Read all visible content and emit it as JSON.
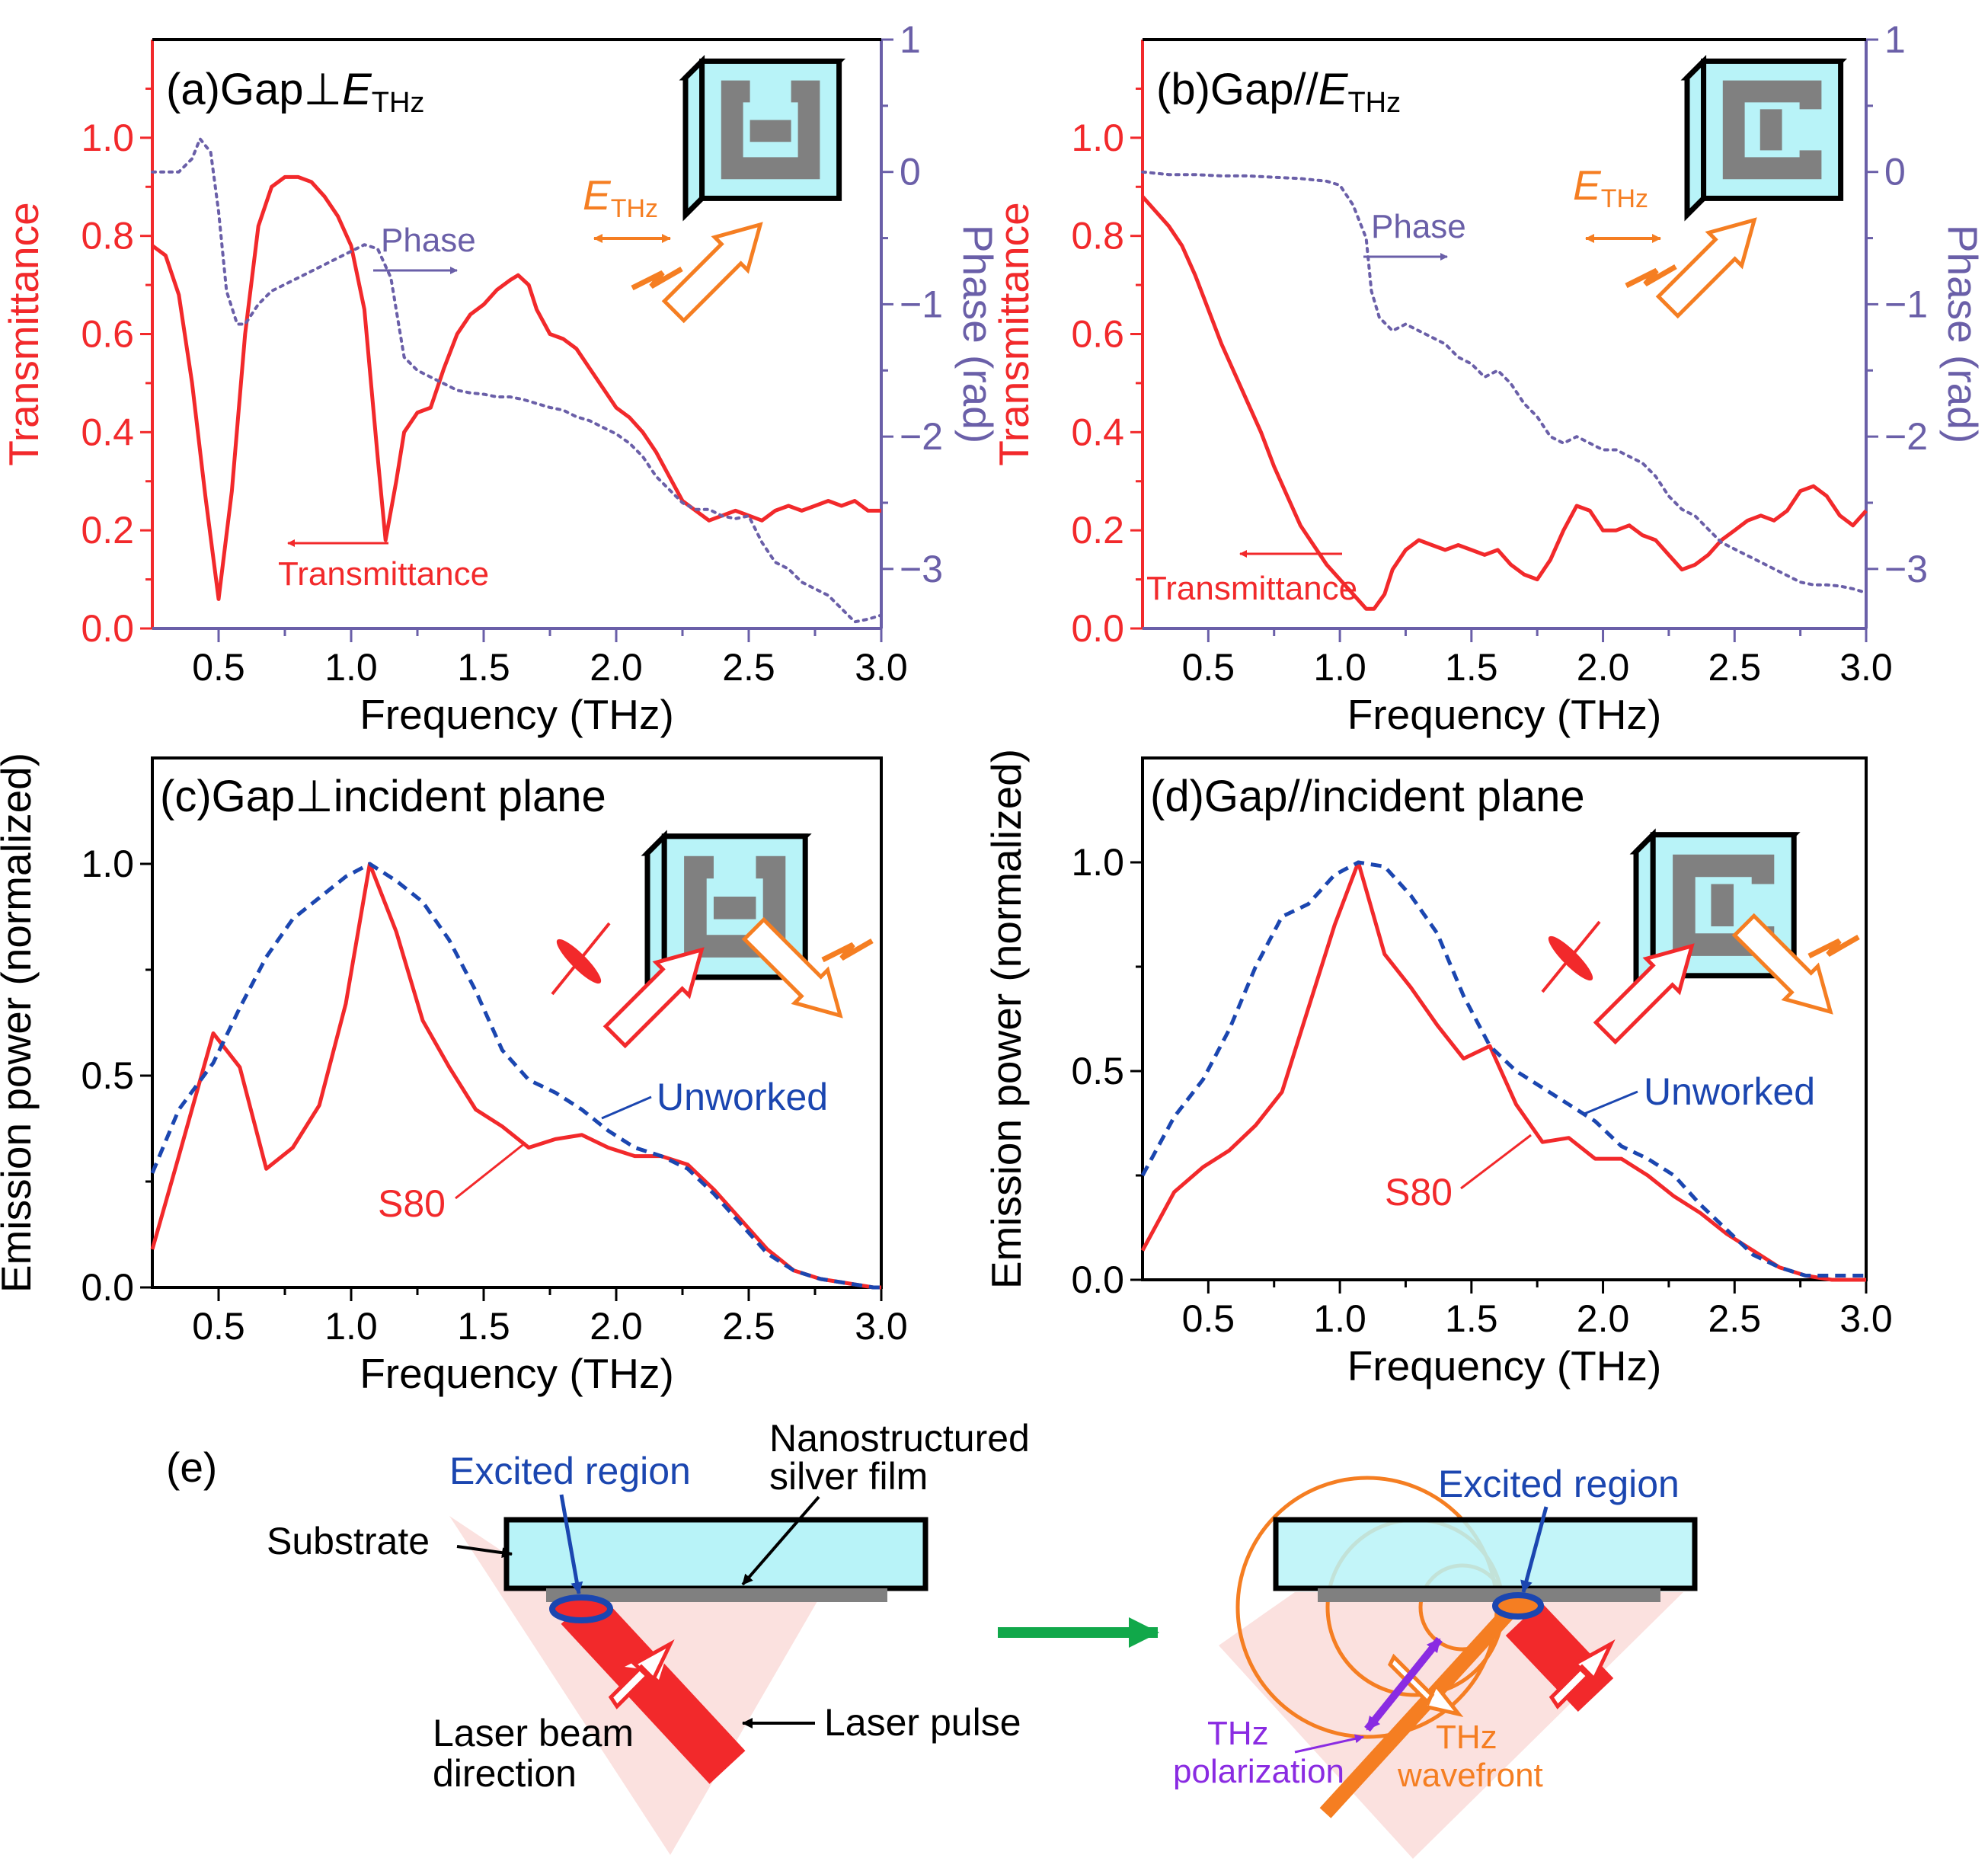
{
  "colors": {
    "red": "#f2292b",
    "purple": "#6a5fa8",
    "blue": "#1b46b0",
    "cyan": "#b8f3f8",
    "gray": "#808080",
    "orange": "#f57e22",
    "pink": "#fbe1df",
    "violet": "#8a2be2",
    "green": "#11a84a"
  },
  "chart_data": [
    {
      "id": "a",
      "type": "line",
      "title": "(a)Gap⊥",
      "title_sym": "E",
      "title_sub": "THz",
      "xlabel": "Frequency (THz)",
      "ylabel": "Transmittance",
      "y2label": "Phase (rad)",
      "xlim": [
        0.25,
        3.0
      ],
      "ylim": [
        0,
        1.2
      ],
      "y2lim": [
        -3.45,
        1.0
      ],
      "xticks": [
        "0.5",
        "1.0",
        "1.5",
        "2.0",
        "2.5",
        "3.0"
      ],
      "yticks": [
        "0.0",
        "0.2",
        "0.4",
        "0.6",
        "0.8",
        "1.0"
      ],
      "y2ticks": [
        "1",
        "0",
        "−1",
        "−2",
        "−3"
      ],
      "annotations": {
        "phase": "Phase",
        "trans": "Transmittance",
        "field_sym": "E",
        "field_sub": "THz"
      },
      "series": [
        {
          "name": "Transmittance",
          "axis": "left",
          "x": [
            0.25,
            0.3,
            0.35,
            0.4,
            0.45,
            0.5,
            0.55,
            0.6,
            0.65,
            0.7,
            0.75,
            0.8,
            0.85,
            0.9,
            0.95,
            1.0,
            1.05,
            1.1,
            1.13,
            1.17,
            1.2,
            1.25,
            1.3,
            1.35,
            1.4,
            1.45,
            1.5,
            1.55,
            1.6,
            1.63,
            1.67,
            1.7,
            1.75,
            1.8,
            1.85,
            1.9,
            1.95,
            2.0,
            2.05,
            2.1,
            2.15,
            2.2,
            2.25,
            2.3,
            2.35,
            2.4,
            2.45,
            2.5,
            2.55,
            2.6,
            2.65,
            2.7,
            2.75,
            2.8,
            2.85,
            2.9,
            2.95,
            3.0
          ],
          "y": [
            0.78,
            0.76,
            0.68,
            0.5,
            0.27,
            0.06,
            0.28,
            0.6,
            0.82,
            0.9,
            0.92,
            0.92,
            0.91,
            0.88,
            0.84,
            0.78,
            0.65,
            0.35,
            0.18,
            0.3,
            0.4,
            0.44,
            0.45,
            0.53,
            0.6,
            0.64,
            0.66,
            0.69,
            0.71,
            0.72,
            0.7,
            0.65,
            0.6,
            0.59,
            0.57,
            0.53,
            0.49,
            0.45,
            0.43,
            0.4,
            0.36,
            0.31,
            0.26,
            0.24,
            0.22,
            0.23,
            0.24,
            0.23,
            0.22,
            0.24,
            0.25,
            0.24,
            0.25,
            0.26,
            0.25,
            0.26,
            0.24,
            0.24
          ]
        },
        {
          "name": "Phase",
          "axis": "right",
          "x": [
            0.25,
            0.3,
            0.35,
            0.4,
            0.43,
            0.47,
            0.5,
            0.53,
            0.57,
            0.6,
            0.65,
            0.7,
            0.75,
            0.8,
            0.85,
            0.9,
            0.95,
            1.0,
            1.05,
            1.1,
            1.15,
            1.2,
            1.25,
            1.3,
            1.35,
            1.4,
            1.45,
            1.5,
            1.55,
            1.6,
            1.65,
            1.7,
            1.75,
            1.8,
            1.85,
            1.9,
            1.95,
            2.0,
            2.05,
            2.1,
            2.15,
            2.2,
            2.25,
            2.3,
            2.35,
            2.4,
            2.45,
            2.5,
            2.55,
            2.6,
            2.65,
            2.7,
            2.75,
            2.8,
            2.85,
            2.9,
            2.95,
            3.0
          ],
          "y": [
            0.0,
            0.0,
            0.0,
            0.1,
            0.25,
            0.15,
            -0.3,
            -0.9,
            -1.15,
            -1.15,
            -1.0,
            -0.9,
            -0.85,
            -0.8,
            -0.75,
            -0.7,
            -0.65,
            -0.6,
            -0.55,
            -0.58,
            -0.8,
            -1.4,
            -1.5,
            -1.55,
            -1.6,
            -1.65,
            -1.67,
            -1.68,
            -1.7,
            -1.7,
            -1.72,
            -1.75,
            -1.78,
            -1.8,
            -1.85,
            -1.88,
            -1.93,
            -1.98,
            -2.05,
            -2.15,
            -2.3,
            -2.4,
            -2.5,
            -2.55,
            -2.55,
            -2.6,
            -2.62,
            -2.6,
            -2.8,
            -2.95,
            -3.0,
            -3.1,
            -3.15,
            -3.2,
            -3.3,
            -3.4,
            -3.38,
            -3.35
          ]
        }
      ]
    },
    {
      "id": "b",
      "type": "line",
      "title": "(b)Gap//",
      "title_sym": "E",
      "title_sub": "THz",
      "xlabel": "Frequency (THz)",
      "ylabel": "Transmittance",
      "y2label": "Phase (rad)",
      "xlim": [
        0.25,
        3.0
      ],
      "ylim": [
        0,
        1.2
      ],
      "y2lim": [
        -3.45,
        1.0
      ],
      "xticks": [
        "0.5",
        "1.0",
        "1.5",
        "2.0",
        "2.5",
        "3.0"
      ],
      "yticks": [
        "0.0",
        "0.2",
        "0.4",
        "0.6",
        "0.8",
        "1.0"
      ],
      "y2ticks": [
        "1",
        "0",
        "−1",
        "−2",
        "−3"
      ],
      "annotations": {
        "phase": "Phase",
        "trans": "Transmittance",
        "field_sym": "E",
        "field_sub": "THz"
      },
      "series": [
        {
          "name": "Transmittance",
          "axis": "left",
          "x": [
            0.25,
            0.3,
            0.35,
            0.4,
            0.45,
            0.5,
            0.55,
            0.6,
            0.65,
            0.7,
            0.75,
            0.8,
            0.85,
            0.9,
            0.95,
            1.0,
            1.05,
            1.1,
            1.13,
            1.17,
            1.2,
            1.25,
            1.3,
            1.35,
            1.4,
            1.45,
            1.5,
            1.55,
            1.6,
            1.65,
            1.7,
            1.75,
            1.8,
            1.85,
            1.9,
            1.95,
            2.0,
            2.05,
            2.1,
            2.15,
            2.2,
            2.25,
            2.3,
            2.35,
            2.4,
            2.45,
            2.5,
            2.55,
            2.6,
            2.65,
            2.7,
            2.75,
            2.8,
            2.85,
            2.9,
            2.95,
            3.0
          ],
          "y": [
            0.88,
            0.85,
            0.82,
            0.78,
            0.72,
            0.65,
            0.58,
            0.52,
            0.46,
            0.4,
            0.33,
            0.27,
            0.21,
            0.17,
            0.13,
            0.1,
            0.07,
            0.04,
            0.04,
            0.07,
            0.12,
            0.16,
            0.18,
            0.17,
            0.16,
            0.17,
            0.16,
            0.15,
            0.16,
            0.13,
            0.11,
            0.1,
            0.14,
            0.2,
            0.25,
            0.24,
            0.2,
            0.2,
            0.21,
            0.19,
            0.18,
            0.15,
            0.12,
            0.13,
            0.15,
            0.18,
            0.2,
            0.22,
            0.23,
            0.22,
            0.24,
            0.28,
            0.29,
            0.27,
            0.23,
            0.21,
            0.24
          ]
        },
        {
          "name": "Phase",
          "axis": "right",
          "x": [
            0.25,
            0.35,
            0.45,
            0.55,
            0.65,
            0.75,
            0.85,
            0.95,
            1.0,
            1.05,
            1.1,
            1.12,
            1.15,
            1.2,
            1.25,
            1.3,
            1.35,
            1.4,
            1.45,
            1.5,
            1.55,
            1.6,
            1.65,
            1.7,
            1.75,
            1.8,
            1.85,
            1.9,
            1.95,
            2.0,
            2.05,
            2.1,
            2.15,
            2.2,
            2.25,
            2.3,
            2.35,
            2.4,
            2.45,
            2.5,
            2.55,
            2.6,
            2.65,
            2.7,
            2.75,
            2.8,
            2.85,
            2.9,
            2.95,
            3.0
          ],
          "y": [
            0.0,
            -0.02,
            -0.02,
            -0.03,
            -0.03,
            -0.04,
            -0.05,
            -0.07,
            -0.1,
            -0.25,
            -0.5,
            -0.9,
            -1.1,
            -1.2,
            -1.15,
            -1.2,
            -1.25,
            -1.3,
            -1.4,
            -1.45,
            -1.55,
            -1.5,
            -1.6,
            -1.75,
            -1.85,
            -2.0,
            -2.05,
            -2.0,
            -2.05,
            -2.1,
            -2.1,
            -2.15,
            -2.2,
            -2.3,
            -2.45,
            -2.55,
            -2.6,
            -2.7,
            -2.8,
            -2.85,
            -2.9,
            -2.95,
            -3.0,
            -3.05,
            -3.1,
            -3.12,
            -3.12,
            -3.13,
            -3.15,
            -3.18
          ]
        }
      ]
    },
    {
      "id": "c",
      "type": "line",
      "title": "(c)Gap⊥incident  plane",
      "xlabel": "Frequency (THz)",
      "ylabel": "Emission power (normalized)",
      "xlim": [
        0.25,
        3.0
      ],
      "ylim": [
        0,
        1.25
      ],
      "xticks": [
        "0.5",
        "1.0",
        "1.5",
        "2.0",
        "2.5",
        "3.0"
      ],
      "yticks": [
        "0.0",
        "0.5",
        "1.0"
      ],
      "annotations": {
        "s80": "S80",
        "unworked": "Unworked"
      },
      "series": [
        {
          "name": "S80",
          "style": "solid",
          "x": [
            0.25,
            0.35,
            0.48,
            0.58,
            0.68,
            0.78,
            0.88,
            0.98,
            1.07,
            1.17,
            1.27,
            1.37,
            1.47,
            1.57,
            1.67,
            1.77,
            1.87,
            1.97,
            2.07,
            2.17,
            2.27,
            2.37,
            2.47,
            2.57,
            2.67,
            2.77,
            2.87,
            2.97,
            3.0
          ],
          "y": [
            0.09,
            0.31,
            0.6,
            0.52,
            0.28,
            0.33,
            0.43,
            0.67,
            1.0,
            0.84,
            0.63,
            0.52,
            0.42,
            0.38,
            0.33,
            0.35,
            0.36,
            0.33,
            0.31,
            0.31,
            0.29,
            0.23,
            0.16,
            0.09,
            0.04,
            0.02,
            0.01,
            0.0,
            0.0
          ]
        },
        {
          "name": "Unworked",
          "style": "dashed",
          "x": [
            0.25,
            0.35,
            0.48,
            0.58,
            0.68,
            0.78,
            0.88,
            0.98,
            1.07,
            1.17,
            1.27,
            1.37,
            1.47,
            1.57,
            1.67,
            1.77,
            1.87,
            1.97,
            2.07,
            2.17,
            2.27,
            2.37,
            2.47,
            2.57,
            2.67,
            2.77,
            2.87,
            2.97,
            3.0
          ],
          "y": [
            0.27,
            0.42,
            0.53,
            0.66,
            0.78,
            0.87,
            0.92,
            0.97,
            1.0,
            0.96,
            0.91,
            0.82,
            0.7,
            0.56,
            0.49,
            0.46,
            0.42,
            0.37,
            0.33,
            0.31,
            0.28,
            0.22,
            0.15,
            0.08,
            0.04,
            0.02,
            0.01,
            0.0,
            0.0
          ]
        }
      ]
    },
    {
      "id": "d",
      "type": "line",
      "title": "(d)Gap//incident  plane",
      "xlabel": "Frequency (THz)",
      "ylabel": "Emission power (normalized)",
      "xlim": [
        0.25,
        3.0
      ],
      "ylim": [
        0,
        1.25
      ],
      "xticks": [
        "0.5",
        "1.0",
        "1.5",
        "2.0",
        "2.5",
        "3.0"
      ],
      "yticks": [
        "0.0",
        "0.5",
        "1.0"
      ],
      "annotations": {
        "s80": "S80",
        "unworked": "Unworked"
      },
      "series": [
        {
          "name": "S80",
          "style": "solid",
          "x": [
            0.25,
            0.37,
            0.48,
            0.58,
            0.68,
            0.78,
            0.88,
            0.98,
            1.07,
            1.17,
            1.27,
            1.37,
            1.47,
            1.57,
            1.67,
            1.77,
            1.87,
            1.97,
            2.07,
            2.17,
            2.27,
            2.37,
            2.47,
            2.57,
            2.67,
            2.77,
            2.87,
            2.97,
            3.0
          ],
          "y": [
            0.07,
            0.21,
            0.27,
            0.31,
            0.37,
            0.45,
            0.65,
            0.85,
            1.0,
            0.78,
            0.7,
            0.61,
            0.53,
            0.56,
            0.42,
            0.33,
            0.34,
            0.29,
            0.29,
            0.25,
            0.2,
            0.16,
            0.11,
            0.07,
            0.03,
            0.01,
            0.0,
            0.0,
            0.0
          ]
        },
        {
          "name": "Unworked",
          "style": "dashed",
          "x": [
            0.25,
            0.37,
            0.48,
            0.58,
            0.68,
            0.78,
            0.88,
            0.98,
            1.07,
            1.17,
            1.27,
            1.37,
            1.47,
            1.57,
            1.67,
            1.77,
            1.87,
            1.97,
            2.07,
            2.17,
            2.27,
            2.37,
            2.47,
            2.57,
            2.67,
            2.77,
            2.87,
            2.97,
            3.0
          ],
          "y": [
            0.25,
            0.39,
            0.48,
            0.6,
            0.75,
            0.87,
            0.9,
            0.97,
            1.0,
            0.99,
            0.92,
            0.83,
            0.68,
            0.56,
            0.5,
            0.46,
            0.42,
            0.38,
            0.32,
            0.29,
            0.25,
            0.18,
            0.12,
            0.06,
            0.03,
            0.01,
            0.01,
            0.01,
            0.01
          ]
        }
      ]
    }
  ],
  "diagram_e": {
    "label": "(e)",
    "excited_region": "Excited region",
    "nanostructured_1": "Nanostructured",
    "nanostructured_2": "silver film",
    "substrate": "Substrate",
    "laser_pulse": "Laser pulse",
    "beam_dir_1": "Laser beam",
    "beam_dir_2": "direction",
    "excited_region_right": "Excited region",
    "thz_pol_1": "THz",
    "thz_pol_2": "polarization",
    "thz_wave_1": "THz",
    "thz_wave_2": "wavefront"
  }
}
